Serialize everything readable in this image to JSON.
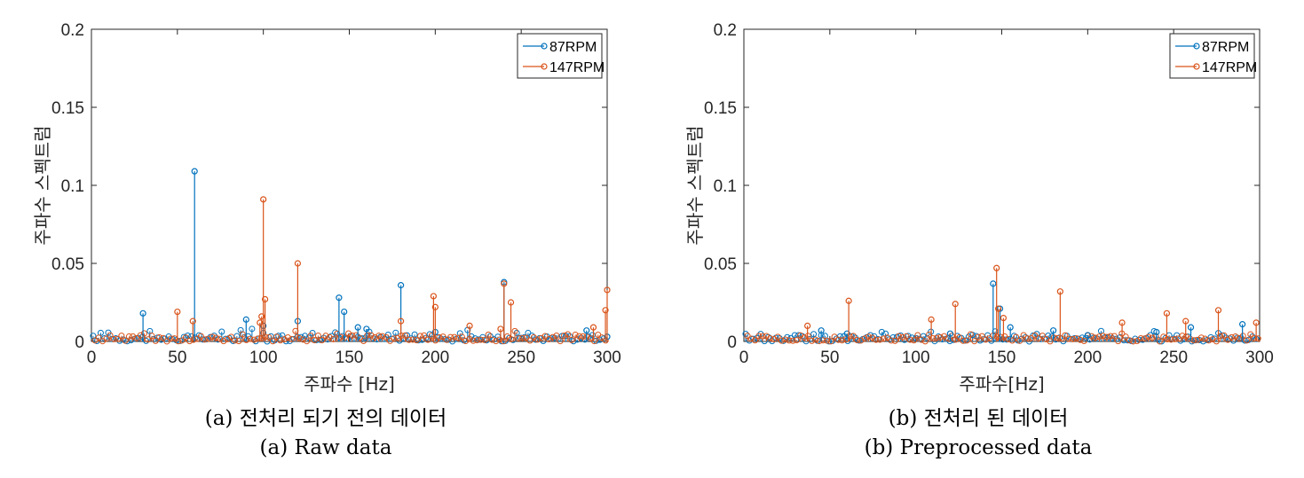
{
  "chart_data": [
    {
      "type": "stem",
      "xlabel": "주파수 [Hz]",
      "ylabel": "주파수 스펙트럼",
      "xlim": [
        0,
        300
      ],
      "ylim": [
        0,
        0.2
      ],
      "xticks": [
        "0",
        "50",
        "100",
        "150",
        "200",
        "250",
        "300"
      ],
      "yticks": [
        "0",
        "0.05",
        "0.1",
        "0.15",
        "0.2"
      ],
      "legend_position": "top-right",
      "series": [
        {
          "name": "87RPM",
          "color": "#0072BD",
          "x": [
            30,
            60,
            90,
            100,
            120,
            144,
            147,
            155,
            160,
            180,
            200,
            240,
            288,
            300
          ],
          "y": [
            0.018,
            0.109,
            0.014,
            0.01,
            0.013,
            0.028,
            0.019,
            0.009,
            0.008,
            0.036,
            0.006,
            0.038,
            0.007,
            0.003
          ]
        },
        {
          "name": "147RPM",
          "color": "#D95319",
          "x": [
            50,
            59,
            98,
            99,
            100,
            101,
            120,
            180,
            199,
            200,
            220,
            238,
            240,
            244,
            292,
            299,
            300
          ],
          "y": [
            0.019,
            0.013,
            0.012,
            0.016,
            0.091,
            0.027,
            0.05,
            0.013,
            0.029,
            0.022,
            0.01,
            0.008,
            0.037,
            0.025,
            0.009,
            0.02,
            0.033
          ]
        }
      ],
      "caption_ko": "(a) 전처리 되기 전의 데이터",
      "caption_en": "(a) Raw data"
    },
    {
      "type": "stem",
      "xlabel": "주파수[Hz]",
      "ylabel": "주파수 스펙트럼",
      "xlim": [
        0,
        300
      ],
      "ylim": [
        0,
        0.2
      ],
      "xticks": [
        "0",
        "50",
        "100",
        "150",
        "200",
        "250",
        "300"
      ],
      "yticks": [
        "0",
        "0.05",
        "0.1",
        "0.15",
        "0.2"
      ],
      "legend_position": "top-right",
      "series": [
        {
          "name": "87RPM",
          "color": "#0072BD",
          "x": [
            45,
            60,
            120,
            145,
            149,
            155,
            180,
            200,
            240,
            260,
            290
          ],
          "y": [
            0.007,
            0.005,
            0.005,
            0.037,
            0.021,
            0.009,
            0.007,
            0.004,
            0.006,
            0.009,
            0.011
          ]
        },
        {
          "name": "147RPM",
          "color": "#D95319",
          "x": [
            37,
            61,
            109,
            123,
            147,
            148,
            151,
            184,
            220,
            246,
            257,
            276,
            298
          ],
          "y": [
            0.01,
            0.026,
            0.014,
            0.024,
            0.047,
            0.021,
            0.015,
            0.032,
            0.012,
            0.018,
            0.013,
            0.02,
            0.012
          ]
        }
      ],
      "caption_ko": "(b) 전처리 된 데이터",
      "caption_en": "(b) Preprocessed data"
    }
  ]
}
